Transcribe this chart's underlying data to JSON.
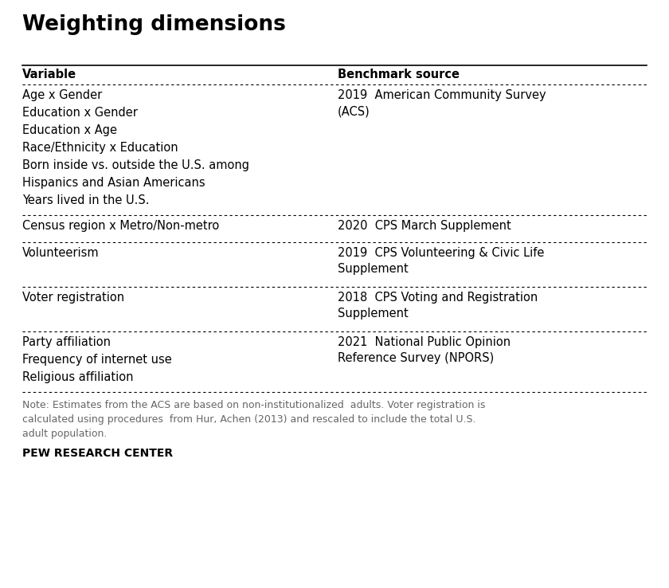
{
  "title": "Weighting dimensions",
  "header": [
    "Variable",
    "Benchmark source"
  ],
  "rows": [
    {
      "variables": [
        "Age x Gender",
        "Education x Gender",
        "Education x Age",
        "Race/Ethnicity x Education",
        "Born inside vs. outside the U.S. among",
        "Hispanics and Asian Americans",
        "Years lived in the U.S."
      ],
      "benchmark": "2019  American Community Survey\n(ACS)"
    },
    {
      "variables": [
        "Census region x Metro/Non-metro"
      ],
      "benchmark": "2020  CPS March Supplement"
    },
    {
      "variables": [
        "Volunteerism"
      ],
      "benchmark": "2019  CPS Volunteering & Civic Life\nSupplement"
    },
    {
      "variables": [
        "Voter registration"
      ],
      "benchmark": "2018  CPS Voting and Registration\nSupplement"
    },
    {
      "variables": [
        "Party affiliation",
        "Frequency of internet use",
        "Religious affiliation"
      ],
      "benchmark": "2021  National Public Opinion\nReference Survey (NPORS)"
    }
  ],
  "note": "Note: Estimates from the ACS are based on non-institutionalized  adults. Voter registration is\ncalculated using procedures  from Hur, Achen (2013) and rescaled to include the total U.S.\nadult population.",
  "footer": "PEW RESEARCH CENTER",
  "col_split": 0.505,
  "background_color": "#ffffff",
  "text_color": "#000000",
  "note_color": "#666666",
  "title_fontsize": 19,
  "header_fontsize": 10.5,
  "body_fontsize": 10.5,
  "note_fontsize": 9,
  "footer_fontsize": 10
}
